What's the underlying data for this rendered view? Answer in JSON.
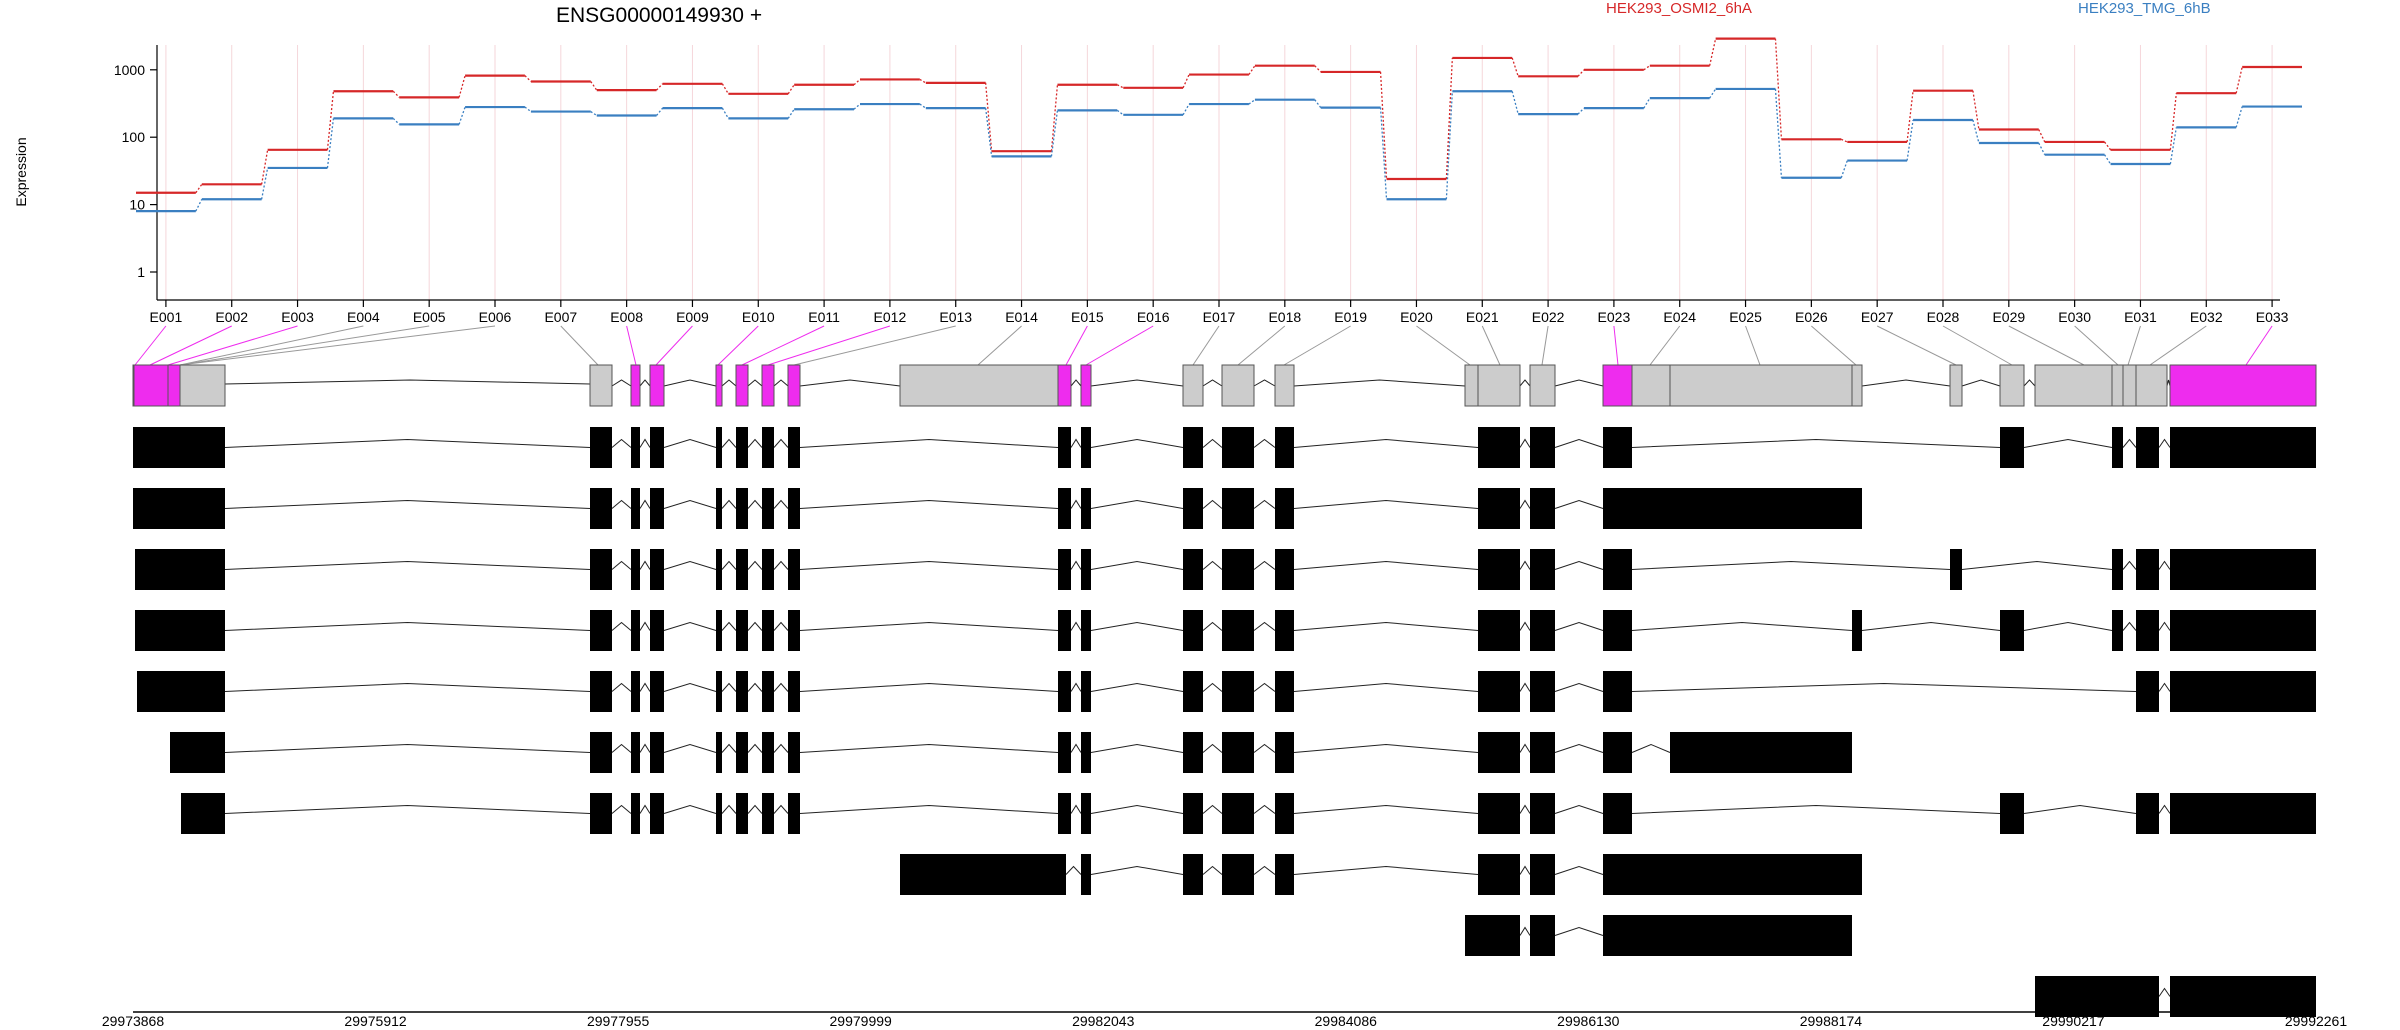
{
  "chart_data": {
    "type": "line",
    "title": "ENSG00000149930 +",
    "ylabel": "Expression",
    "y_scale": "log",
    "y_ticks": [
      "1",
      "10",
      "100",
      "1000"
    ],
    "categories": [
      "E001",
      "E002",
      "E003",
      "E004",
      "E005",
      "E006",
      "E007",
      "E008",
      "E009",
      "E010",
      "E011",
      "E012",
      "E013",
      "E014",
      "E015",
      "E016",
      "E017",
      "E018",
      "E019",
      "E020",
      "E021",
      "E022",
      "E023",
      "E024",
      "E025",
      "E026",
      "E027",
      "E028",
      "E029",
      "E030",
      "E031",
      "E032",
      "E033"
    ],
    "series": [
      {
        "name": "HEK293_OSMI2_6hA",
        "color": "#d62728",
        "values": [
          15,
          20,
          65,
          480,
          390,
          820,
          670,
          500,
          620,
          440,
          600,
          720,
          640,
          62,
          600,
          540,
          850,
          1150,
          930,
          24,
          1500,
          800,
          1000,
          1150,
          2900,
          93,
          85,
          490,
          130,
          85,
          65,
          450,
          1100
        ]
      },
      {
        "name": "HEK293_TMG_6hB",
        "color": "#3a7fc1",
        "values": [
          8,
          12,
          35,
          190,
          155,
          280,
          240,
          210,
          270,
          190,
          260,
          310,
          270,
          52,
          250,
          215,
          310,
          360,
          275,
          12,
          480,
          220,
          270,
          380,
          520,
          25,
          45,
          180,
          82,
          55,
          40,
          140,
          285
        ]
      }
    ],
    "highlighted_exons": [
      "E001",
      "E002",
      "E003",
      "E008",
      "E009",
      "E010",
      "E011",
      "E012",
      "E015",
      "E016",
      "E023",
      "E033"
    ],
    "legend_placement": "top",
    "grid": "vertical"
  },
  "gene_model": {
    "genomic_ticks": [
      "29973868",
      "29975912",
      "29977955",
      "29979999",
      "29982043",
      "29984086",
      "29986130",
      "29988174",
      "29990217",
      "29992261"
    ],
    "highlight_color": "#ee2cee",
    "exon_color": "#cccccc",
    "transcript_count": 10
  }
}
